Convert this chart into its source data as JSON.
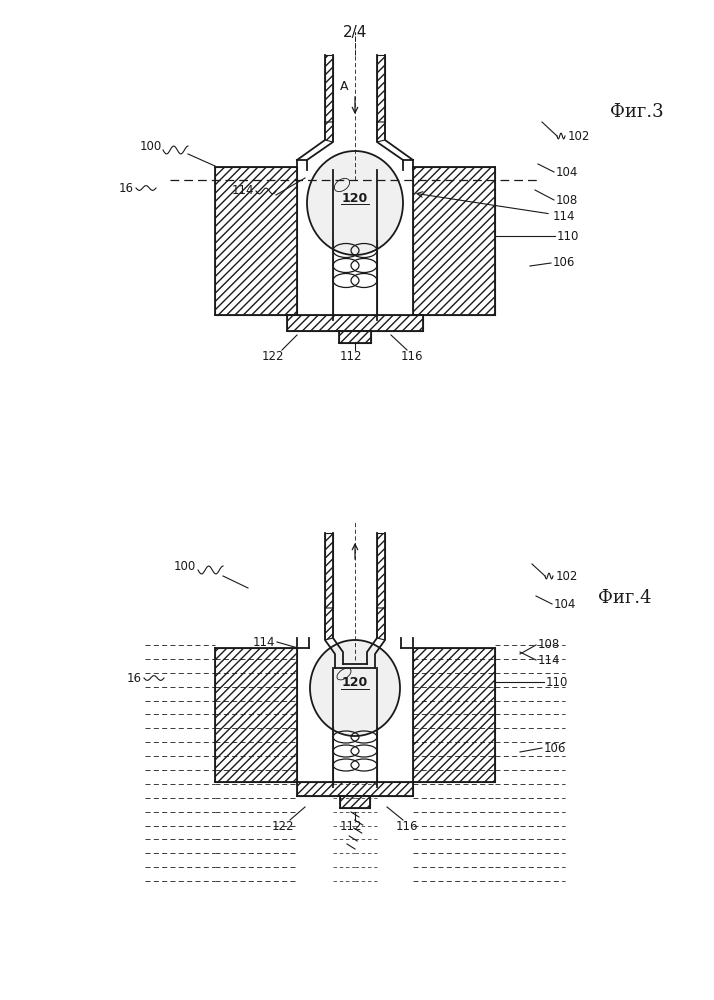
{
  "bg_color": "#ffffff",
  "lc": "#1a1a1a",
  "fig3_label": "Фиг.3",
  "fig4_label": "Фиг.4",
  "page_num": "2/4"
}
